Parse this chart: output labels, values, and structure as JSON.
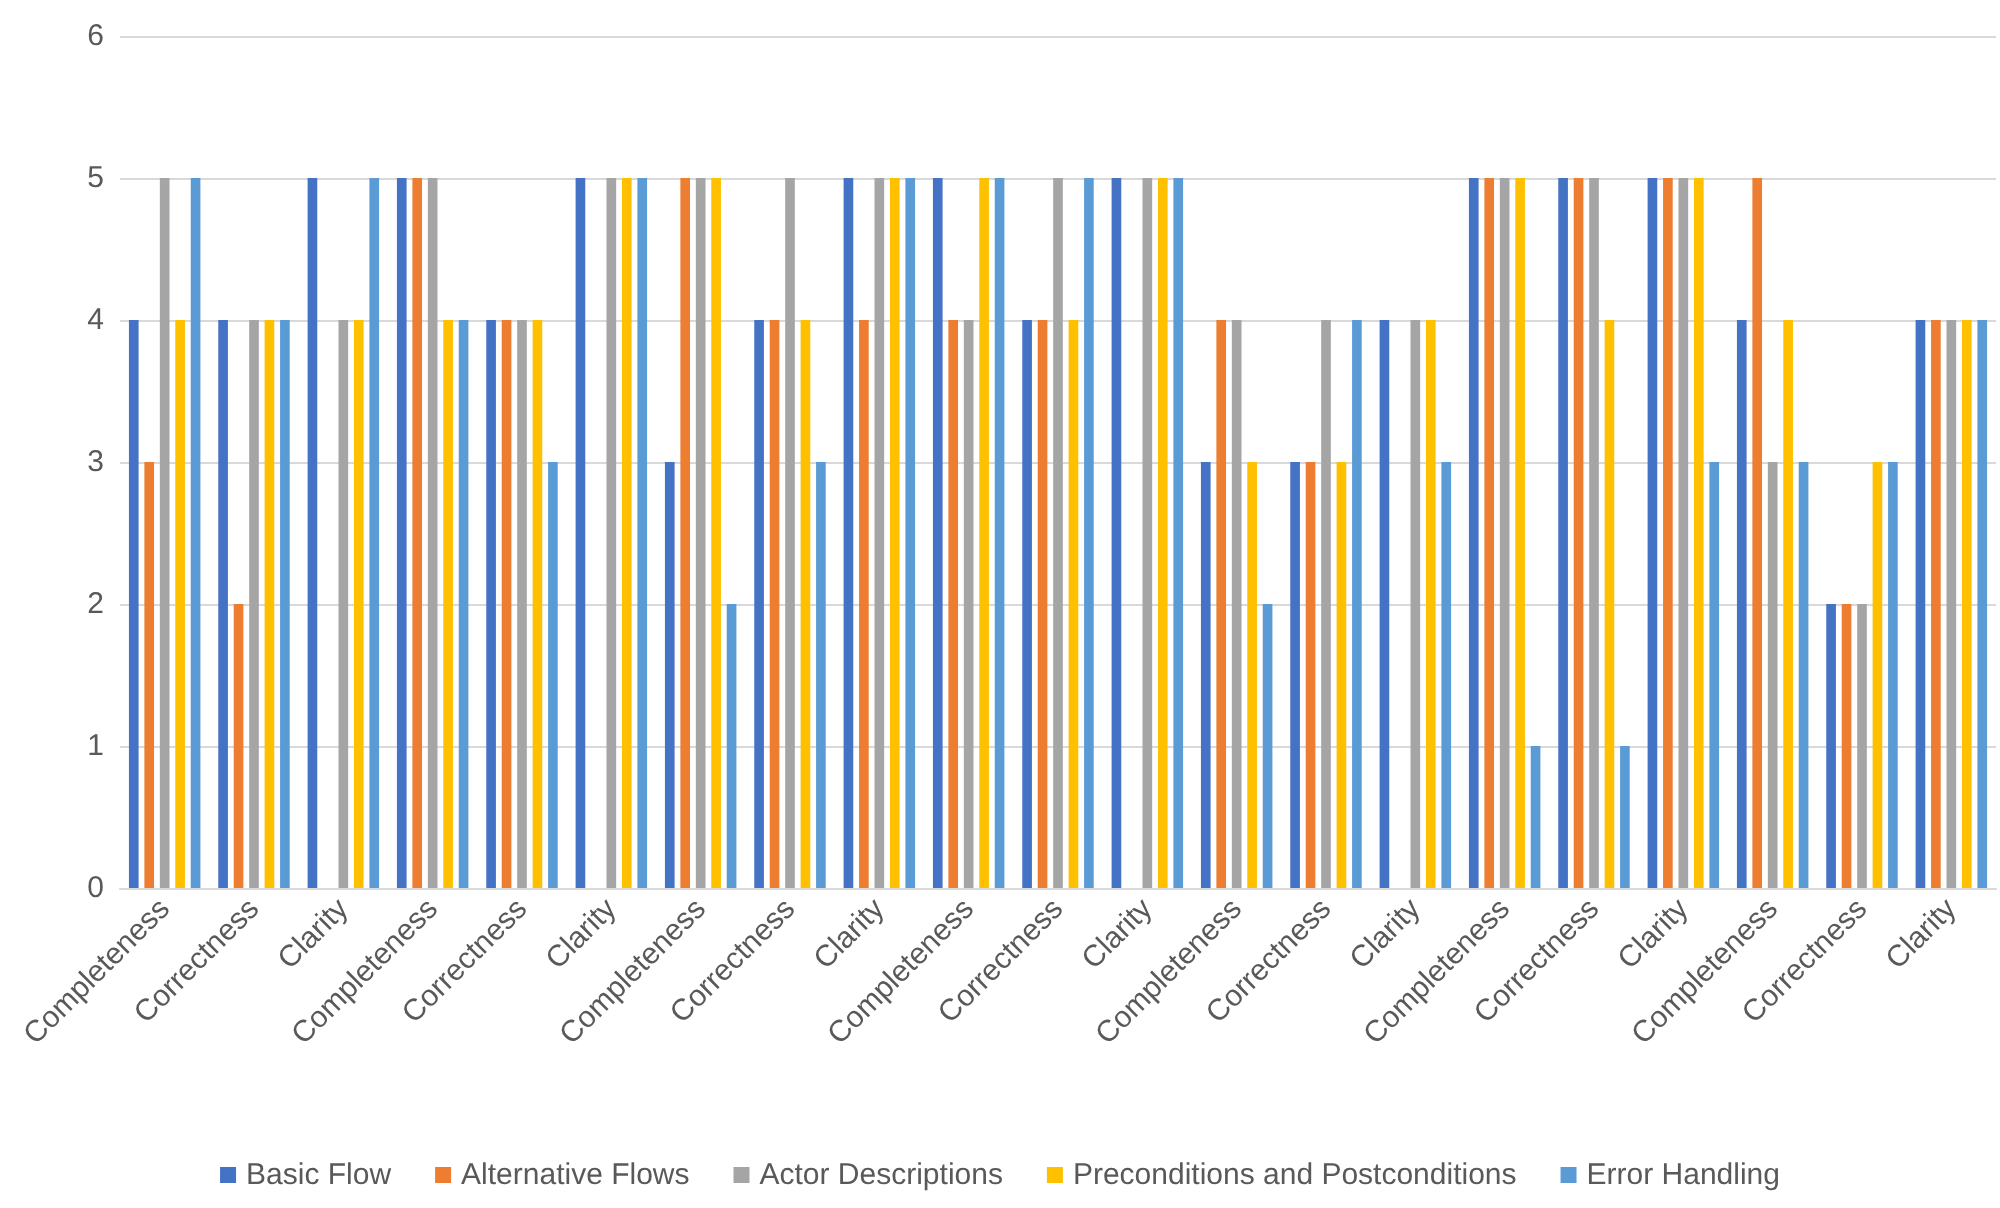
{
  "chart_data": {
    "type": "bar",
    "categories": [
      "Completeness",
      "Correctness",
      "Clarity",
      "Completeness",
      "Correctness",
      "Clarity",
      "Completeness",
      "Correctness",
      "Clarity",
      "Completeness",
      "Correctness",
      "Clarity",
      "Completeness",
      "Correctness",
      "Clarity",
      "Completeness",
      "Correctness",
      "Clarity",
      "Completeness",
      "Correctness",
      "Clarity"
    ],
    "series": [
      {
        "name": "Basic Flow",
        "color": "#4472c4",
        "values": [
          4,
          4,
          5,
          5,
          4,
          5,
          3,
          4,
          5,
          5,
          4,
          5,
          3,
          3,
          4,
          5,
          5,
          5,
          4,
          2,
          4
        ]
      },
      {
        "name": "Alternative Flows",
        "color": "#ed7d31",
        "values": [
          3,
          2,
          0,
          5,
          4,
          0,
          5,
          4,
          4,
          4,
          4,
          0,
          4,
          3,
          0,
          5,
          5,
          5,
          5,
          2,
          4
        ]
      },
      {
        "name": "Actor Descriptions",
        "color": "#a5a5a5",
        "values": [
          5,
          4,
          4,
          5,
          4,
          5,
          5,
          5,
          5,
          4,
          5,
          5,
          4,
          4,
          4,
          5,
          5,
          5,
          3,
          2,
          4
        ]
      },
      {
        "name": "Preconditions and Postconditions",
        "color": "#ffc000",
        "values": [
          4,
          4,
          4,
          4,
          4,
          5,
          5,
          4,
          5,
          5,
          4,
          5,
          3,
          3,
          4,
          5,
          4,
          5,
          4,
          3,
          4
        ]
      },
      {
        "name": "Error Handling",
        "color": "#5b9bd5",
        "values": [
          5,
          4,
          5,
          4,
          3,
          5,
          2,
          3,
          5,
          5,
          5,
          5,
          2,
          4,
          3,
          1,
          1,
          3,
          3,
          3,
          4
        ]
      }
    ],
    "ylim": [
      0,
      6
    ],
    "yticks": [
      0,
      1,
      2,
      3,
      4,
      5,
      6
    ],
    "grid": "y",
    "legend": "bottom"
  }
}
